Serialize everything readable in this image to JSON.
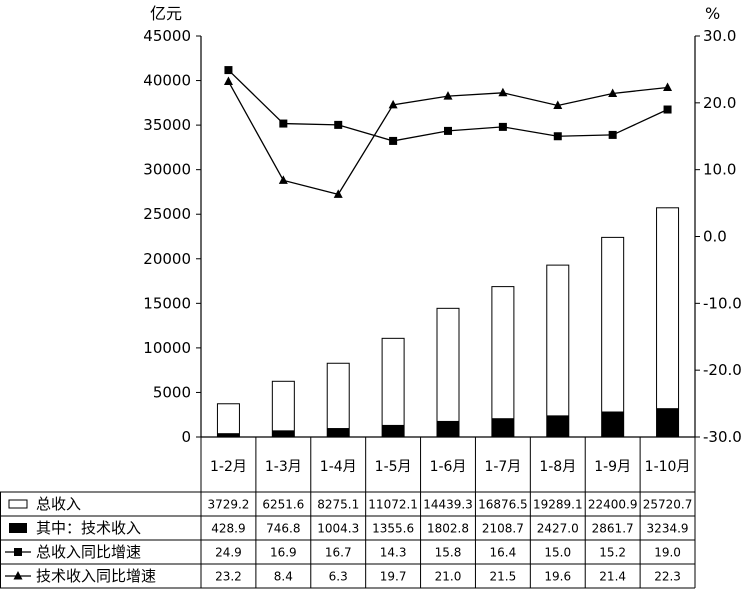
{
  "chart_data": {
    "type": "bar",
    "left_unit": "亿元",
    "right_unit": "%",
    "categories": [
      "1-2月",
      "1-3月",
      "1-4月",
      "1-5月",
      "1-6月",
      "1-7月",
      "1-8月",
      "1-9月",
      "1-10月"
    ],
    "left_axis": {
      "ylim": [
        0,
        45000
      ],
      "ticks": [
        "0",
        "5000",
        "10000",
        "15000",
        "20000",
        "25000",
        "30000",
        "35000",
        "40000",
        "45000"
      ]
    },
    "right_axis": {
      "ylim": [
        -30,
        30
      ],
      "ticks": [
        "-30.0",
        "-20.0",
        "-10.0",
        "0.0",
        "10.0",
        "20.0",
        "30.0"
      ]
    },
    "series": [
      {
        "name": "总收入",
        "kind": "bar",
        "axis": "left",
        "values": [
          3729.2,
          6251.6,
          8275.1,
          11072.1,
          14439.3,
          16876.5,
          19289.1,
          22400.9,
          25720.7
        ],
        "labels": [
          "3729.2",
          "6251.6",
          "8275.1",
          "11072.1",
          "14439.3",
          "16876.5",
          "19289.1",
          "22400.9",
          "25720.7"
        ]
      },
      {
        "name": "其中：技术收入",
        "kind": "bar",
        "axis": "left",
        "values": [
          428.9,
          746.8,
          1004.3,
          1355.6,
          1802.8,
          2108.7,
          2427.0,
          2861.7,
          3234.9
        ],
        "labels": [
          "428.9",
          "746.8",
          "1004.3",
          "1355.6",
          "1802.8",
          "2108.7",
          "2427.0",
          "2861.7",
          "3234.9"
        ]
      },
      {
        "name": "总收入同比增速",
        "kind": "line",
        "marker": "square",
        "axis": "right",
        "values": [
          24.9,
          16.9,
          16.7,
          14.3,
          15.8,
          16.4,
          15.0,
          15.2,
          19.0
        ],
        "labels": [
          "24.9",
          "16.9",
          "16.7",
          "14.3",
          "15.8",
          "16.4",
          "15.0",
          "15.2",
          "19.0"
        ]
      },
      {
        "name": "技术收入同比增速",
        "kind": "line",
        "marker": "triangle",
        "axis": "right",
        "values": [
          23.2,
          8.4,
          6.3,
          19.7,
          21.0,
          21.5,
          19.6,
          21.4,
          22.3
        ],
        "labels": [
          "23.2",
          "8.4",
          "6.3",
          "19.7",
          "21.0",
          "21.5",
          "19.6",
          "21.4",
          "22.3"
        ]
      }
    ],
    "grid": false,
    "legend": "data-table-below"
  }
}
